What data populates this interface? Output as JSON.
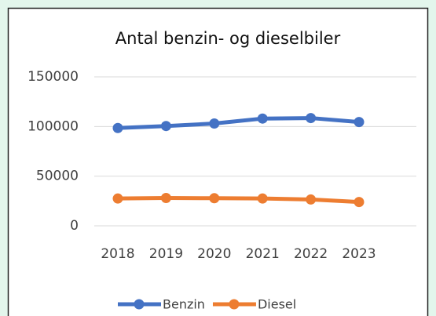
{
  "chart_data": {
    "type": "line",
    "title": "Antal benzin- og dieselbiler",
    "categories": [
      "2018",
      "2019",
      "2020",
      "2021",
      "2022",
      "2023"
    ],
    "series": [
      {
        "name": "Benzin",
        "color": "#4472c4",
        "values": [
          98500,
          100500,
          103000,
          108000,
          108500,
          104500
        ]
      },
      {
        "name": "Diesel",
        "color": "#ed7d31",
        "values": [
          27500,
          28000,
          27800,
          27500,
          26500,
          24000
        ]
      }
    ],
    "ylim": [
      0,
      150000
    ],
    "yticks": [
      0,
      50000,
      100000,
      150000
    ],
    "grid": true,
    "legend": "bottom"
  }
}
